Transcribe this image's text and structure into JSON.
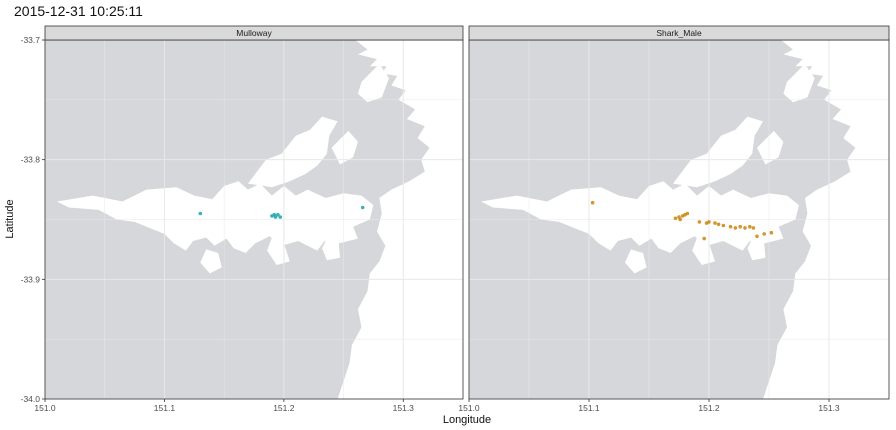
{
  "plot": {
    "title": "2015-12-31 10:25:11",
    "xlabel": "Longitude",
    "ylabel": "Latitude"
  },
  "colors": {
    "land": "#d6d7da",
    "water": "#ffffff",
    "strip": "#d9d9d9",
    "strip_border": "#333333",
    "grid": "#e8e8e8",
    "mulloway": "#1aa3b0",
    "shark_male": "#c8860b"
  },
  "chart_data": {
    "type": "scatter",
    "facets": [
      {
        "label": "Mulloway",
        "color_key": "mulloway"
      },
      {
        "label": "Shark_Male",
        "color_key": "shark_male"
      }
    ],
    "xlim": [
      151.0,
      151.35
    ],
    "ylim": [
      -34.0,
      -33.7
    ],
    "x_ticks": [
      151.0,
      151.1,
      151.2,
      151.3
    ],
    "x_tick_labels": [
      "151.0",
      "151.1",
      "151.2",
      "151.3"
    ],
    "y_ticks": [
      -34.0,
      -33.9,
      -33.8,
      -33.7
    ],
    "y_tick_labels": [
      "-34.0",
      "-33.9",
      "-33.8",
      "-33.7"
    ],
    "grid": true,
    "series": [
      {
        "facet": "Mulloway",
        "points": [
          [
            151.13,
            -33.845
          ],
          [
            151.19,
            -33.847
          ],
          [
            151.193,
            -33.848
          ],
          [
            151.195,
            -33.846
          ],
          [
            151.192,
            -33.846
          ],
          [
            151.197,
            -33.848
          ],
          [
            151.266,
            -33.84
          ]
        ]
      },
      {
        "facet": "Shark_Male",
        "points": [
          [
            151.103,
            -33.836
          ],
          [
            151.172,
            -33.849
          ],
          [
            151.175,
            -33.848
          ],
          [
            151.178,
            -33.847
          ],
          [
            151.18,
            -33.846
          ],
          [
            151.182,
            -33.845
          ],
          [
            151.176,
            -33.85
          ],
          [
            151.192,
            -33.852
          ],
          [
            151.198,
            -33.853
          ],
          [
            151.2,
            -33.852
          ],
          [
            151.205,
            -33.853
          ],
          [
            151.208,
            -33.854
          ],
          [
            151.212,
            -33.855
          ],
          [
            151.218,
            -33.856
          ],
          [
            151.222,
            -33.857
          ],
          [
            151.226,
            -33.856
          ],
          [
            151.23,
            -33.857
          ],
          [
            151.234,
            -33.856
          ],
          [
            151.237,
            -33.857
          ],
          [
            151.24,
            -33.864
          ],
          [
            151.246,
            -33.862
          ],
          [
            151.252,
            -33.861
          ],
          [
            151.196,
            -33.866
          ]
        ]
      }
    ]
  }
}
